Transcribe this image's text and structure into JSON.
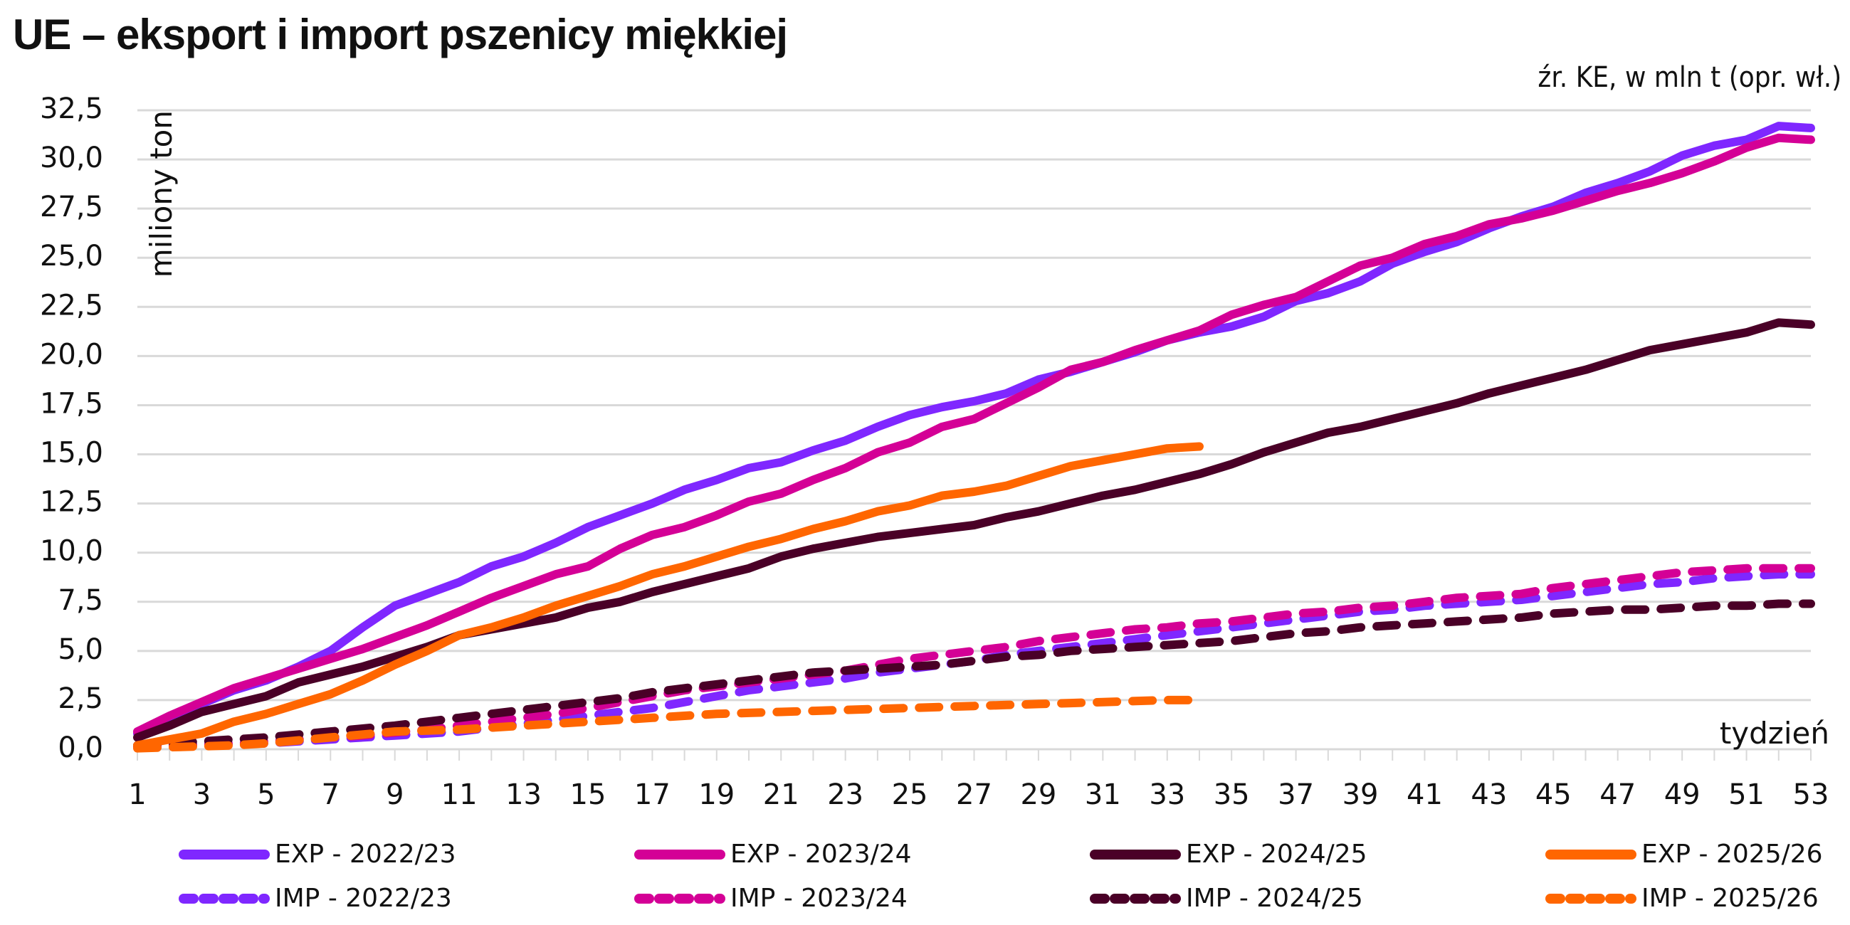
{
  "title": "UE – eksport i import pszenicy miękkiej",
  "source_note": "źr. KE, w mln t (opr. wł.)",
  "chart_data": {
    "type": "line",
    "title": "UE – eksport i import pszenicy miękkiej",
    "subtitle": "źr. KE, w mln t (opr. wł.)",
    "xlabel": "tydzień",
    "ylabel": "miliony ton",
    "xlim": [
      1,
      53
    ],
    "ylim": [
      0,
      32.5
    ],
    "grid": true,
    "legend_position": "bottom",
    "x_tick_labels": [
      "1",
      "3",
      "5",
      "7",
      "9",
      "11",
      "13",
      "15",
      "17",
      "19",
      "21",
      "23",
      "25",
      "27",
      "29",
      "31",
      "33",
      "35",
      "37",
      "39",
      "41",
      "43",
      "45",
      "47",
      "49",
      "51",
      "53"
    ],
    "y_tick_labels": [
      "0,0",
      "2,5",
      "5,0",
      "7,5",
      "10,0",
      "12,5",
      "15,0",
      "17,5",
      "20,0",
      "22,5",
      "25,0",
      "27,5",
      "30,0",
      "32,5"
    ],
    "y_ticks": [
      0,
      2.5,
      5,
      7.5,
      10,
      12.5,
      15,
      17.5,
      20,
      22.5,
      25,
      27.5,
      30,
      32.5
    ],
    "x": [
      1,
      2,
      3,
      4,
      5,
      6,
      7,
      8,
      9,
      10,
      11,
      12,
      13,
      14,
      15,
      16,
      17,
      18,
      19,
      20,
      21,
      22,
      23,
      24,
      25,
      26,
      27,
      28,
      29,
      30,
      31,
      32,
      33,
      34,
      35,
      36,
      37,
      38,
      39,
      40,
      41,
      42,
      43,
      44,
      45,
      46,
      47,
      48,
      49,
      50,
      51,
      52,
      53
    ],
    "series": [
      {
        "name": "EXP - 2022/23",
        "color": "#7F27FF",
        "dash": "solid",
        "values": [
          0.8,
          1.5,
          2.3,
          3.0,
          3.5,
          4.2,
          5.0,
          6.2,
          7.3,
          7.9,
          8.5,
          9.3,
          9.8,
          10.5,
          11.3,
          11.9,
          12.5,
          13.2,
          13.7,
          14.3,
          14.6,
          15.2,
          15.7,
          16.4,
          17.0,
          17.4,
          17.7,
          18.1,
          18.8,
          19.2,
          19.7,
          20.2,
          20.8,
          21.2,
          21.5,
          22.0,
          22.8,
          23.2,
          23.8,
          24.7,
          25.3,
          25.8,
          26.5,
          27.1,
          27.6,
          28.3,
          28.8,
          29.4,
          30.2,
          30.7,
          31.0,
          31.7,
          31.6
        ]
      },
      {
        "name": "EXP - 2023/24",
        "color": "#D40096",
        "dash": "solid",
        "values": [
          0.9,
          1.7,
          2.4,
          3.1,
          3.6,
          4.1,
          4.6,
          5.1,
          5.7,
          6.3,
          7.0,
          7.7,
          8.3,
          8.9,
          9.3,
          10.2,
          10.9,
          11.3,
          11.9,
          12.6,
          13.0,
          13.7,
          14.3,
          15.1,
          15.6,
          16.4,
          16.8,
          17.6,
          18.4,
          19.3,
          19.7,
          20.3,
          20.8,
          21.3,
          22.1,
          22.6,
          23.0,
          23.8,
          24.6,
          25.0,
          25.7,
          26.1,
          26.7,
          27.0,
          27.4,
          27.9,
          28.4,
          28.8,
          29.3,
          29.9,
          30.6,
          31.1,
          31.0
        ]
      },
      {
        "name": "EXP - 2024/25",
        "color": "#4A0027",
        "dash": "solid",
        "values": [
          0.6,
          1.2,
          1.9,
          2.3,
          2.7,
          3.4,
          3.8,
          4.2,
          4.7,
          5.2,
          5.8,
          6.1,
          6.4,
          6.7,
          7.2,
          7.5,
          8.0,
          8.4,
          8.8,
          9.2,
          9.8,
          10.2,
          10.5,
          10.8,
          11.0,
          11.2,
          11.4,
          11.8,
          12.1,
          12.5,
          12.9,
          13.2,
          13.6,
          14.0,
          14.5,
          15.1,
          15.6,
          16.1,
          16.4,
          16.8,
          17.2,
          17.6,
          18.1,
          18.5,
          18.9,
          19.3,
          19.8,
          20.3,
          20.6,
          20.9,
          21.2,
          21.7,
          21.6
        ]
      },
      {
        "name": "EXP - 2025/26",
        "color": "#FF6600",
        "dash": "solid",
        "values": [
          0.2,
          0.5,
          0.8,
          1.4,
          1.8,
          2.3,
          2.8,
          3.5,
          4.3,
          5.0,
          5.8,
          6.2,
          6.7,
          7.3,
          7.8,
          8.3,
          8.9,
          9.3,
          9.8,
          10.3,
          10.7,
          11.2,
          11.6,
          12.1,
          12.4,
          12.9,
          13.1,
          13.4,
          13.9,
          14.4,
          14.7,
          15.0,
          15.3,
          15.4,
          null,
          null,
          null,
          null,
          null,
          null,
          null,
          null,
          null,
          null,
          null,
          null,
          null,
          null,
          null,
          null,
          null,
          null,
          null
        ]
      },
      {
        "name": "IMP - 2022/23",
        "color": "#7F27FF",
        "dash": "dashed",
        "values": [
          0.1,
          0.15,
          0.2,
          0.25,
          0.3,
          0.4,
          0.5,
          0.6,
          0.7,
          0.8,
          0.9,
          1.1,
          1.3,
          1.5,
          1.7,
          1.9,
          2.1,
          2.4,
          2.7,
          3.0,
          3.2,
          3.4,
          3.6,
          3.9,
          4.1,
          4.3,
          4.5,
          4.8,
          5.0,
          5.2,
          5.4,
          5.6,
          5.8,
          6.0,
          6.2,
          6.4,
          6.6,
          6.8,
          7.0,
          7.1,
          7.3,
          7.4,
          7.5,
          7.6,
          7.8,
          8.0,
          8.2,
          8.4,
          8.5,
          8.7,
          8.8,
          8.9,
          8.9
        ]
      },
      {
        "name": "IMP - 2023/24",
        "color": "#D40096",
        "dash": "dashed",
        "values": [
          0.15,
          0.2,
          0.25,
          0.3,
          0.4,
          0.5,
          0.6,
          0.7,
          0.85,
          1.0,
          1.2,
          1.4,
          1.6,
          1.8,
          2.1,
          2.4,
          2.7,
          3.0,
          3.2,
          3.4,
          3.6,
          3.8,
          4.0,
          4.3,
          4.6,
          4.8,
          5.0,
          5.2,
          5.5,
          5.7,
          5.9,
          6.1,
          6.2,
          6.4,
          6.5,
          6.7,
          6.9,
          7.0,
          7.2,
          7.3,
          7.5,
          7.7,
          7.8,
          7.9,
          8.2,
          8.4,
          8.6,
          8.8,
          9.0,
          9.1,
          9.2,
          9.2,
          9.2
        ]
      },
      {
        "name": "IMP - 2024/25",
        "color": "#4A0027",
        "dash": "dashed",
        "values": [
          0.2,
          0.3,
          0.4,
          0.5,
          0.6,
          0.75,
          0.9,
          1.05,
          1.2,
          1.4,
          1.6,
          1.8,
          2.0,
          2.2,
          2.4,
          2.6,
          2.9,
          3.1,
          3.3,
          3.5,
          3.7,
          3.9,
          4.0,
          4.1,
          4.2,
          4.3,
          4.5,
          4.7,
          4.8,
          5.0,
          5.1,
          5.2,
          5.3,
          5.4,
          5.5,
          5.7,
          5.9,
          6.0,
          6.2,
          6.3,
          6.4,
          6.5,
          6.6,
          6.7,
          6.9,
          7.0,
          7.1,
          7.1,
          7.2,
          7.3,
          7.3,
          7.4,
          7.4
        ]
      },
      {
        "name": "IMP - 2025/26",
        "color": "#FF6600",
        "dash": "dashed",
        "values": [
          0.05,
          0.1,
          0.15,
          0.2,
          0.3,
          0.45,
          0.6,
          0.75,
          0.9,
          0.95,
          1.0,
          1.1,
          1.2,
          1.3,
          1.4,
          1.5,
          1.6,
          1.7,
          1.8,
          1.85,
          1.9,
          1.95,
          2.0,
          2.05,
          2.1,
          2.15,
          2.2,
          2.25,
          2.3,
          2.35,
          2.4,
          2.45,
          2.5,
          2.5,
          null,
          null,
          null,
          null,
          null,
          null,
          null,
          null,
          null,
          null,
          null,
          null,
          null,
          null,
          null,
          null,
          null,
          null,
          null
        ]
      }
    ]
  },
  "legend": [
    {
      "label": "EXP - 2022/23",
      "color": "#7F27FF",
      "dash": "solid"
    },
    {
      "label": "EXP - 2023/24",
      "color": "#D40096",
      "dash": "solid"
    },
    {
      "label": "EXP - 2024/25",
      "color": "#4A0027",
      "dash": "solid"
    },
    {
      "label": "EXP - 2025/26",
      "color": "#FF6600",
      "dash": "solid"
    },
    {
      "label": "IMP - 2022/23",
      "color": "#7F27FF",
      "dash": "dashed"
    },
    {
      "label": "IMP - 2023/24",
      "color": "#D40096",
      "dash": "dashed"
    },
    {
      "label": "IMP - 2024/25",
      "color": "#4A0027",
      "dash": "dashed"
    },
    {
      "label": "IMP - 2025/26",
      "color": "#FF6600",
      "dash": "dashed"
    }
  ]
}
